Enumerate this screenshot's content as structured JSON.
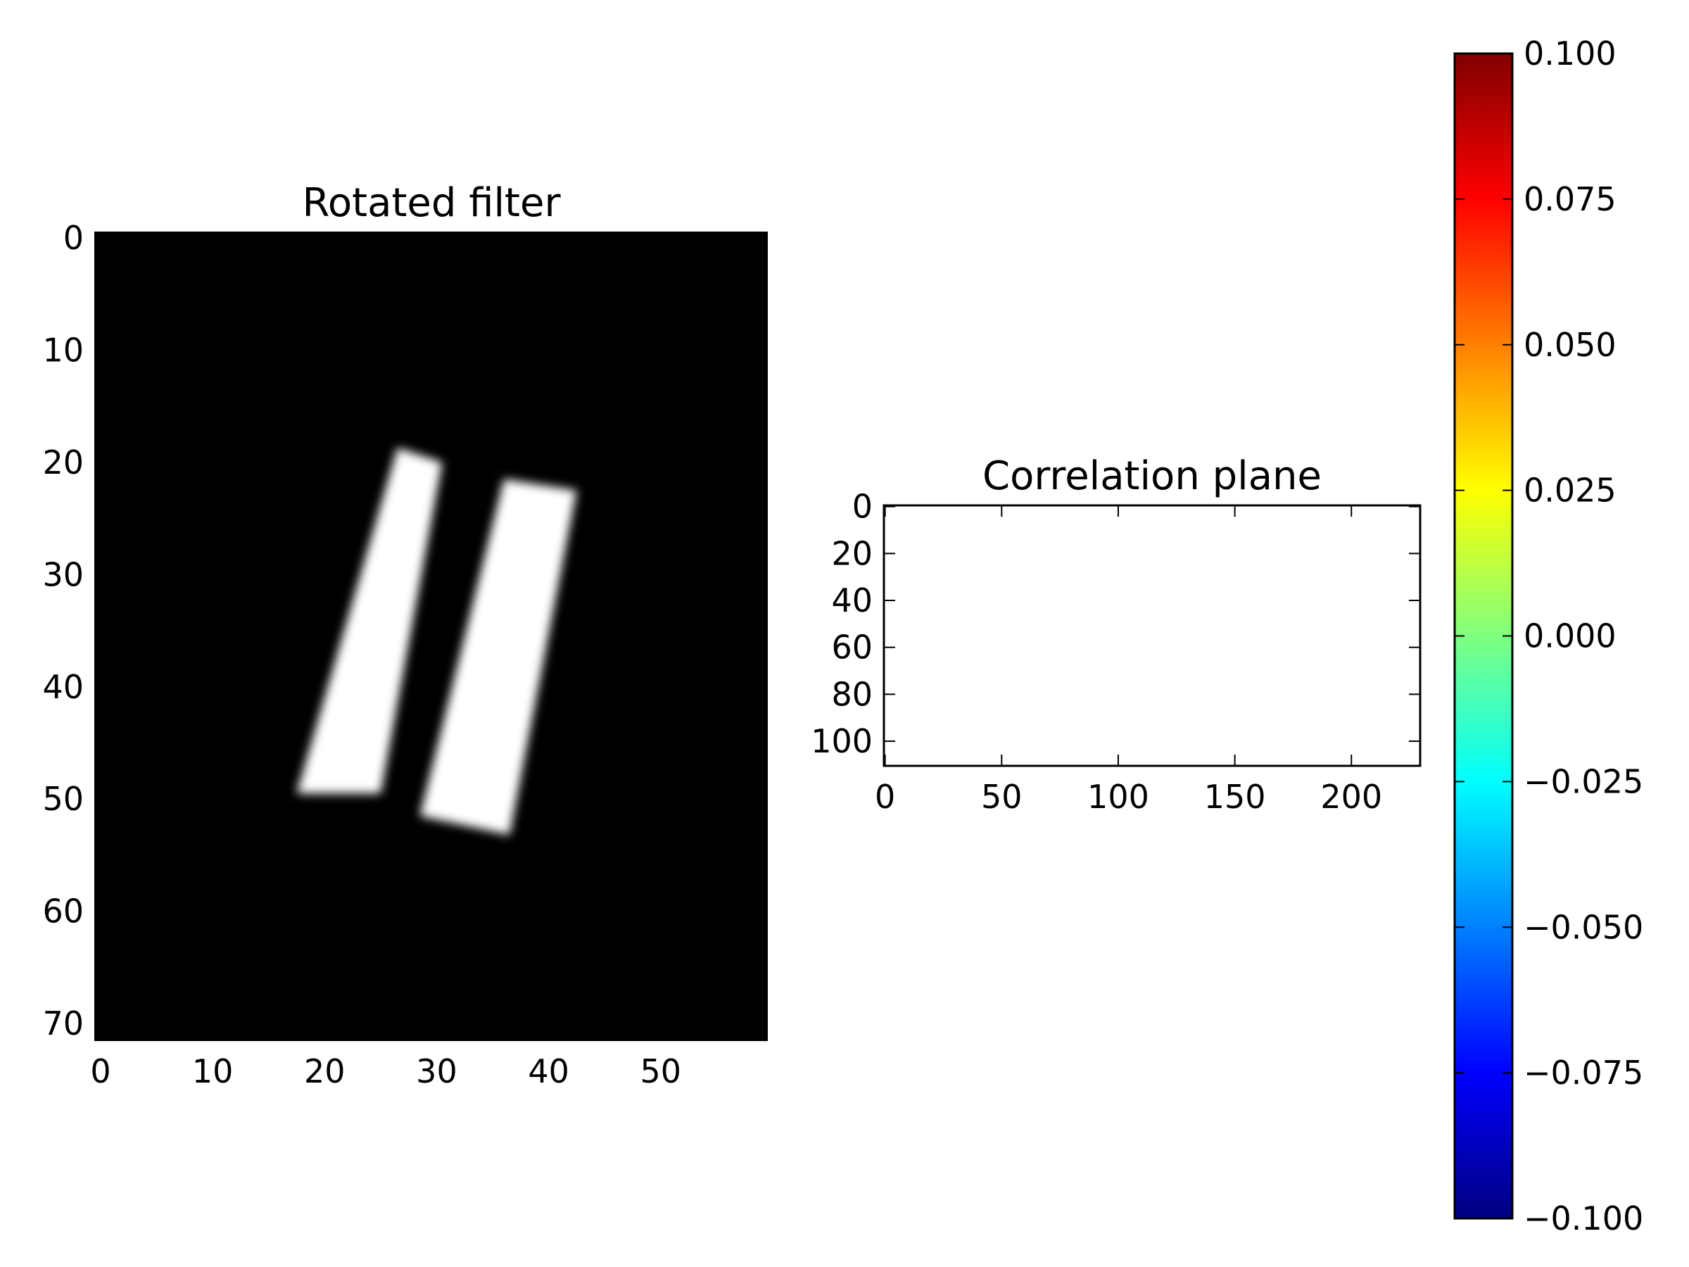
{
  "chart_data": [
    {
      "type": "heatmap",
      "title": "Rotated filter",
      "xlabel": "",
      "ylabel": "",
      "xlim": [
        -0.5,
        59.5
      ],
      "ylim": [
        71.5,
        -0.5
      ],
      "x_ticks": [
        "0",
        "10",
        "20",
        "30",
        "40",
        "50"
      ],
      "y_ticks": [
        "0",
        "10",
        "20",
        "30",
        "40",
        "50",
        "60",
        "70"
      ],
      "colormap": "gray",
      "background_value": "black",
      "shapes": [
        {
          "name": "left-bar",
          "value": 1,
          "outline": [
            [
              26.5,
              18.7
            ],
            [
              30.5,
              20.0
            ],
            [
              25.0,
              49.5
            ],
            [
              17.5,
              49.5
            ]
          ]
        },
        {
          "name": "right-bar",
          "value": 1,
          "outline": [
            [
              36.0,
              21.5
            ],
            [
              42.5,
              22.5
            ],
            [
              36.5,
              53.2
            ],
            [
              28.5,
              51.5
            ]
          ]
        }
      ]
    },
    {
      "type": "heatmap",
      "title": "Correlation plane",
      "xlabel": "",
      "ylabel": "",
      "xlim": [
        -0.5,
        229.5
      ],
      "ylim": [
        110.5,
        -0.5
      ],
      "x_ticks": [
        "0",
        "50",
        "100",
        "150",
        "200"
      ],
      "y_ticks": [
        "0",
        "20",
        "40",
        "60",
        "80",
        "100"
      ],
      "colormap": "jet",
      "values": "constant"
    },
    {
      "type": "colorbar",
      "colormap": "jet",
      "range": [
        -0.1,
        0.1
      ],
      "tick_labels": [
        "0.100",
        "0.075",
        "0.050",
        "0.025",
        "0.000",
        "−0.025",
        "−0.050",
        "−0.075",
        "−0.100"
      ],
      "colors": [
        "#000080",
        "#0000ff",
        "#0080ff",
        "#00ffff",
        "#80ff80",
        "#ffff00",
        "#ff8000",
        "#ff0000",
        "#800000"
      ]
    }
  ]
}
